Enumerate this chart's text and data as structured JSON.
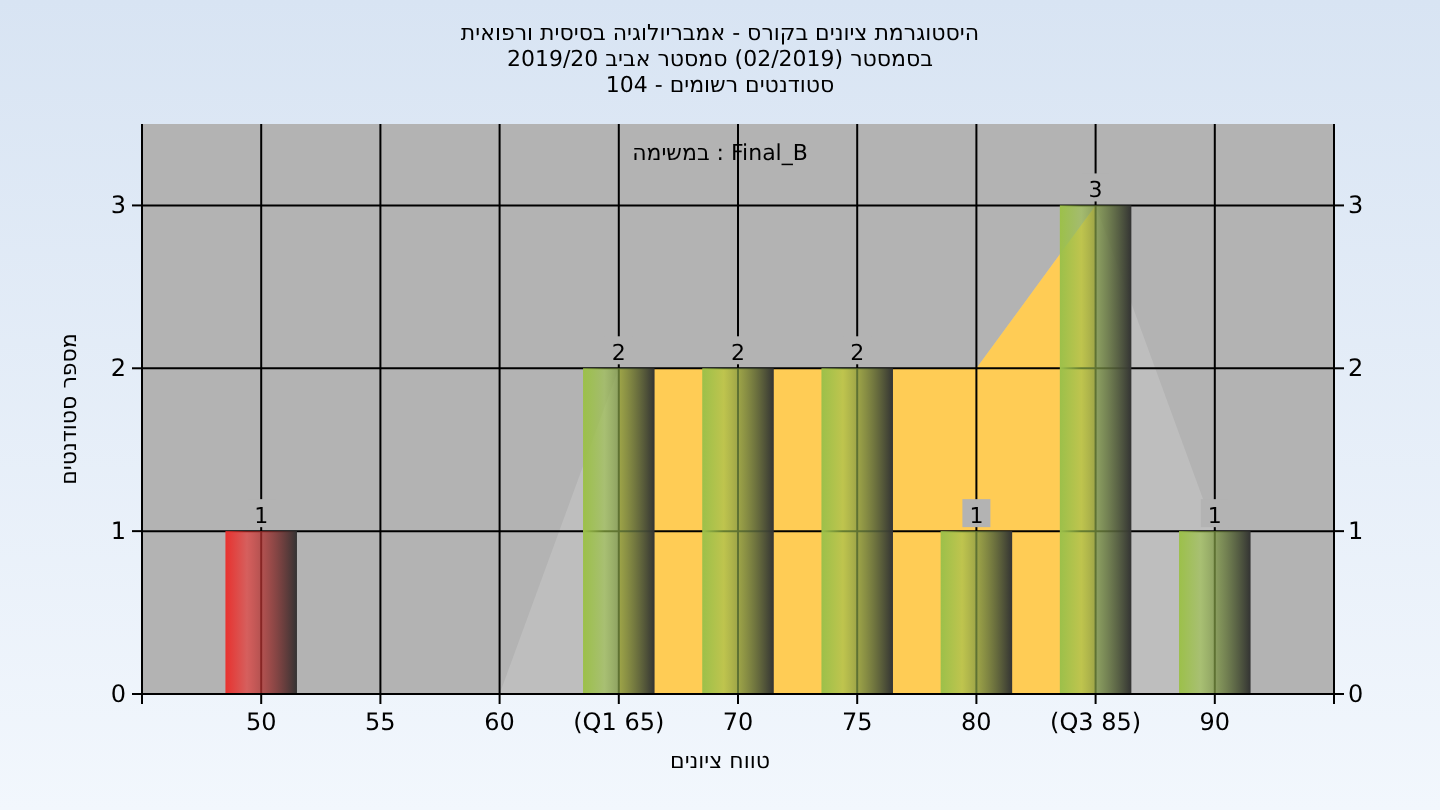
{
  "chart_data": {
    "type": "bar",
    "title": "היסטוגרמת ציונים בקורס - אמבריולוגיה בסיסית ורפואית",
    "subtitle": "בסמסטר  (02/2019)  סמסטר אביב 2019/20\nסטודנטים רשומים - 104",
    "xlabel": "טווח ציונים",
    "ylabel": "מספר סטודנטים",
    "annotations": [
      "במשימה : Final_B"
    ],
    "categories": [
      "50",
      "55",
      "60",
      "(Q1 65)",
      "70",
      "75",
      "80",
      "(Q3 85)",
      "90"
    ],
    "series": [
      {
        "type": "area",
        "color": "#bebebe",
        "values": [
          null,
          null,
          0,
          2,
          2,
          2,
          2,
          3,
          1
        ]
      },
      {
        "type": "area",
        "color": "#ffcc55",
        "values": [
          null,
          null,
          null,
          2,
          2,
          2,
          2,
          3,
          null
        ]
      },
      {
        "type": "bar",
        "colors": [
          "#e8322f",
          "#9cc04a",
          "#9cc04a",
          "#9cc04a",
          "#9cc04a",
          "#9cc04a",
          "#9cc04a",
          "#9cc04a",
          "#9cc04a"
        ],
        "values": [
          1,
          0,
          0,
          2,
          2,
          2,
          1,
          3,
          1
        ],
        "value_labels": [
          "1",
          null,
          null,
          "2",
          "2",
          "2",
          "1",
          "3",
          "1"
        ]
      }
    ],
    "ylim": [
      0,
      3.5
    ],
    "yticks": [
      0,
      1,
      2,
      3
    ],
    "y2lim": [
      0,
      3.5
    ],
    "y2ticks": [
      0,
      1,
      2,
      3
    ],
    "grid": true
  }
}
